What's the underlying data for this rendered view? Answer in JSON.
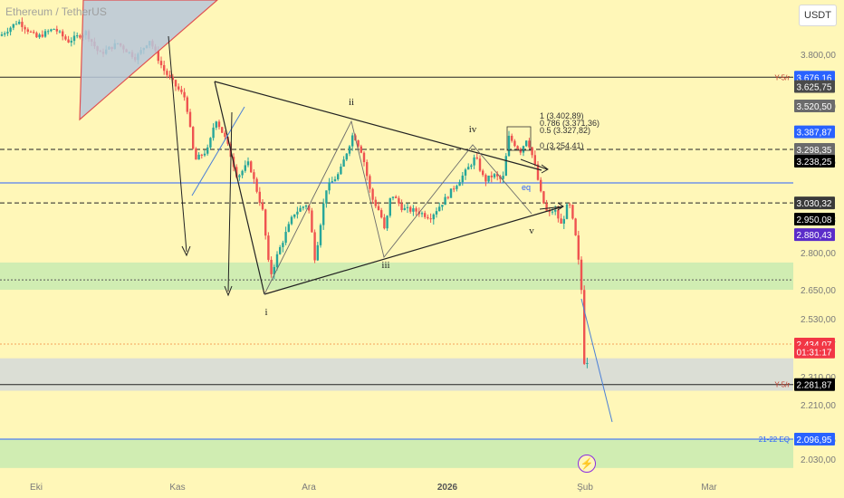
{
  "symbol": {
    "title": "Ethereum / TetherUS"
  },
  "currency_button": {
    "label": "USDT"
  },
  "event_badge": {
    "icon": "lightning-icon",
    "glyph": "⚡"
  },
  "chart_data": {
    "type": "candlestick",
    "ylim": [
      1980,
      4020
    ],
    "x_ticks": [
      "Eki",
      "Kas",
      "Ara",
      "2026",
      "Şub",
      "Mar"
    ],
    "y_ticks": [
      "3.800,00",
      "3.520,50",
      "3.238,25",
      "2.950,08",
      "2.800,00",
      "2.650,00",
      "2.530,00",
      "2.434,07",
      "2.310,00",
      "2.210,00",
      "2.096,95",
      "2.030,00"
    ],
    "y_tick_values": [
      3800,
      3520.5,
      3238.25,
      2950.08,
      2800,
      2650,
      2530,
      2434.07,
      2310,
      2210,
      2096.95,
      2030
    ],
    "price_labels": [
      {
        "text": "3.676,16",
        "value": 3676.16,
        "color": "#2962ff"
      },
      {
        "text": "3.625,75",
        "value": 3625.75,
        "color": "#4a4a4a"
      },
      {
        "text": "3.520,50",
        "value": 3520.5,
        "color": "#6b6b6b"
      },
      {
        "text": "3.387,87",
        "value": 3387.87,
        "color": "#2962ff"
      },
      {
        "text": "3.298,35",
        "value": 3298.35,
        "color": "#6b6b6b"
      },
      {
        "text": "3.238,25",
        "value": 3238.25,
        "color": "#000000"
      },
      {
        "text": "3.030,32",
        "value": 3030.32,
        "color": "#3a3a3a"
      },
      {
        "text": "2.950,08",
        "value": 2950.08,
        "color": "#000000"
      },
      {
        "text": "2.880,43",
        "value": 2880.43,
        "color": "#5b2cc9"
      },
      {
        "text": "2.434,07",
        "value": 2434.07,
        "color": "#f23645"
      },
      {
        "text": "01:31:17",
        "value": 2404,
        "color": "#f23645"
      },
      {
        "text": "2.281,87",
        "value": 2281.87,
        "color": "#000000"
      },
      {
        "text": "2.096,95",
        "value": 2096.95,
        "color": "#2962ff"
      }
    ],
    "horizontal_lines": [
      {
        "value": 3676.16,
        "color": "#222222",
        "style": "solid",
        "label": "Y-5/r"
      },
      {
        "value": 3298.35,
        "color": "#222222",
        "style": "dashed",
        "label": ""
      },
      {
        "value": 3130,
        "color": "#2962ff",
        "style": "solid",
        "label": ""
      },
      {
        "value": 3030.32,
        "color": "#222222",
        "style": "dashed",
        "label": ""
      },
      {
        "value": 2690,
        "color": "#555555",
        "style": "dotted",
        "label": ""
      },
      {
        "value": 2434.07,
        "color": "#f4a05a",
        "style": "dotted",
        "label": ""
      },
      {
        "value": 2281.87,
        "color": "#222222",
        "style": "solid",
        "label": "Y-5/r"
      },
      {
        "value": 2096.95,
        "color": "#2962ff",
        "style": "solid",
        "label": "21-22 EQ"
      }
    ],
    "zones": [
      {
        "from": 2650,
        "to": 2760,
        "color": "#c8ebb0"
      },
      {
        "from": 2260,
        "to": 2380,
        "color": "#d5d9d9"
      },
      {
        "from": 2000,
        "to": 2096.95,
        "color": "#c8ebb0"
      }
    ],
    "wave_labels": [
      "i",
      "ii",
      "iii",
      "iv",
      "v"
    ],
    "fib_labels": [
      {
        "text": "1 (3.402,89)",
        "value": 3402.89
      },
      {
        "text": "0.786 (3.371,36)",
        "value": 3371.36
      },
      {
        "text": "0.5 (3.327,82)",
        "value": 3327.82
      },
      {
        "text": "0 (3.254,41)",
        "value": 3254.41
      }
    ],
    "eq_label": "eq"
  }
}
